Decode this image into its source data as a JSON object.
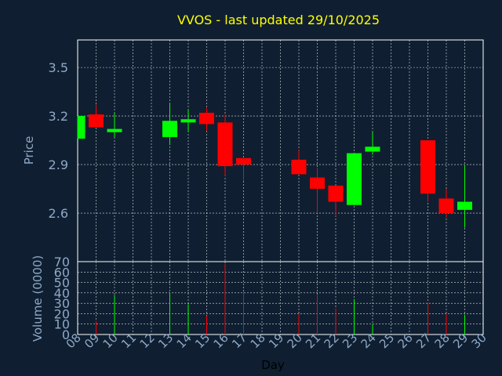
{
  "chart_data": {
    "type": "candlestick",
    "title": "VVOS - last updated 29/10/2025",
    "xlabel": "Day",
    "price_panel": {
      "ylabel": "Price",
      "ylim": [
        2.3,
        3.67
      ],
      "yticks": [
        "2.6",
        "2.9",
        "3.2",
        "3.5"
      ],
      "grid": true
    },
    "volume_panel": {
      "ylabel": "Volume (0000)",
      "ylim": [
        0,
        70
      ],
      "yticks": [
        "0",
        "10",
        "20",
        "30",
        "40",
        "50",
        "60",
        "70"
      ],
      "grid": true
    },
    "x_ticks": [
      "08",
      "09",
      "10",
      "11",
      "12",
      "13",
      "14",
      "15",
      "16",
      "17",
      "18",
      "19",
      "20",
      "21",
      "22",
      "23",
      "24",
      "25",
      "26",
      "27",
      "28",
      "29",
      "30"
    ],
    "colors": {
      "up": "#00ff00",
      "down": "#ff0000",
      "background": "#0f1f31",
      "grid": "#ffffff",
      "title": "#ffff00",
      "axis_text": "#8ea8c6"
    },
    "candles": [
      {
        "day": "08",
        "open": 3.06,
        "high": 3.2,
        "low": 3.06,
        "close": 3.2,
        "volume": 0
      },
      {
        "day": "09",
        "open": 3.21,
        "high": 3.27,
        "low": 3.13,
        "close": 3.13,
        "volume": 13
      },
      {
        "day": "10",
        "open": 3.1,
        "high": 3.22,
        "low": 3.07,
        "close": 3.12,
        "volume": 38
      },
      {
        "day": "13",
        "open": 3.07,
        "high": 3.28,
        "low": 3.02,
        "close": 3.17,
        "volume": 40
      },
      {
        "day": "14",
        "open": 3.16,
        "high": 3.24,
        "low": 3.1,
        "close": 3.18,
        "volume": 29
      },
      {
        "day": "15",
        "open": 3.22,
        "high": 3.25,
        "low": 3.11,
        "close": 3.15,
        "volume": 18
      },
      {
        "day": "16",
        "open": 3.16,
        "high": 3.21,
        "low": 2.83,
        "close": 2.89,
        "volume": 68
      },
      {
        "day": "17",
        "open": 2.94,
        "high": 2.94,
        "low": 2.8,
        "close": 2.9,
        "volume": 41
      },
      {
        "day": "20",
        "open": 2.93,
        "high": 2.99,
        "low": 2.84,
        "close": 2.84,
        "volume": 20
      },
      {
        "day": "21",
        "open": 2.82,
        "high": 2.88,
        "low": 2.6,
        "close": 2.75,
        "volume": 38
      },
      {
        "day": "22",
        "open": 2.77,
        "high": 2.77,
        "low": 2.58,
        "close": 2.67,
        "volume": 25
      },
      {
        "day": "23",
        "open": 2.65,
        "high": 2.97,
        "low": 2.65,
        "close": 2.97,
        "volume": 34
      },
      {
        "day": "24",
        "open": 2.98,
        "high": 3.1,
        "low": 2.96,
        "close": 3.01,
        "volume": 10
      },
      {
        "day": "27",
        "open": 3.05,
        "high": 3.05,
        "low": 2.67,
        "close": 2.72,
        "volume": 31
      },
      {
        "day": "28",
        "open": 2.69,
        "high": 2.75,
        "low": 2.57,
        "close": 2.6,
        "volume": 20
      },
      {
        "day": "29",
        "open": 2.62,
        "high": 2.89,
        "low": 2.51,
        "close": 2.67,
        "volume": 19
      }
    ]
  }
}
